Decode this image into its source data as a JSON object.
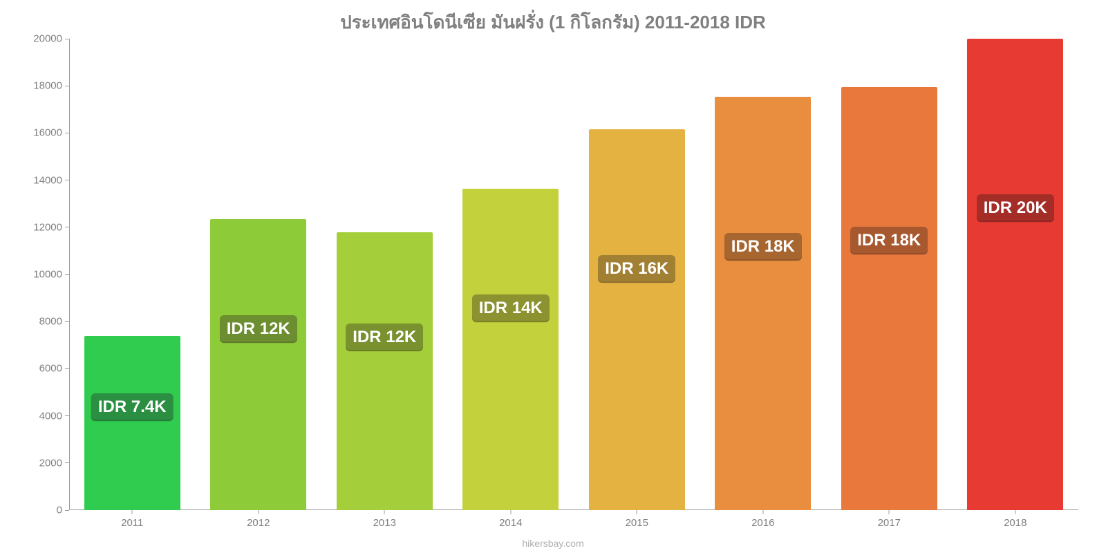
{
  "chart": {
    "type": "bar",
    "title": "ประเทศอินโดนีเซีย มันฝรั่ง (1 กิโลกรัม) 2011-2018 IDR",
    "title_color": "#808080",
    "title_fontsize": 26,
    "background_color": "#ffffff",
    "axis_color": "#9c9c9c",
    "tick_label_color": "#808080",
    "tick_fontsize": 15,
    "ylim": [
      0,
      20000
    ],
    "ytick_step": 2000,
    "yticks": [
      0,
      2000,
      4000,
      6000,
      8000,
      10000,
      12000,
      14000,
      16000,
      18000,
      20000
    ],
    "categories": [
      "2011",
      "2012",
      "2013",
      "2014",
      "2015",
      "2016",
      "2017",
      "2018"
    ],
    "values": [
      7400,
      12350,
      11800,
      13650,
      16150,
      17550,
      17950,
      20000
    ],
    "value_labels": [
      "IDR 7.4K",
      "IDR 12K",
      "IDR 12K",
      "IDR 14K",
      "IDR 16K",
      "IDR 18K",
      "IDR 18K",
      "IDR 20K"
    ],
    "bar_colors": [
      "#2fcc4f",
      "#8dcb38",
      "#a5cf3a",
      "#c3d13d",
      "#e4b241",
      "#e98d3e",
      "#e9783c",
      "#e73a32"
    ],
    "label_bg_colors": [
      "#2b8f42",
      "#6c8d30",
      "#7a912f",
      "#8c922f",
      "#a28033",
      "#a7652f",
      "#a7582e",
      "#a52d28"
    ],
    "label_text_color": "#ffffff",
    "label_fontsize": 24,
    "bar_width_ratio": 0.76,
    "source": "hikersbay.com",
    "source_color": "#b0b0b0"
  }
}
